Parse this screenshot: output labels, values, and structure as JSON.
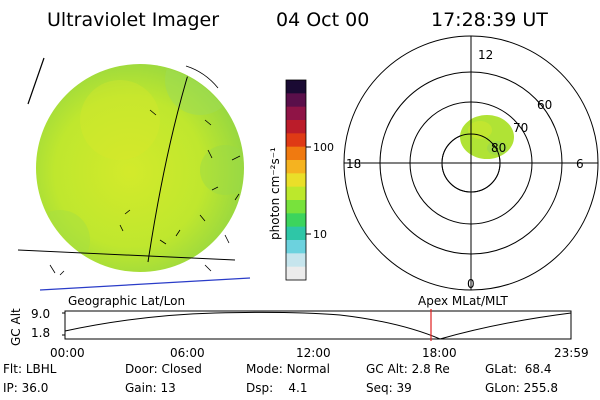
{
  "header": {
    "instrument": "Ultraviolet Imager",
    "date": "04 Oct 00",
    "time": "17:28:39 UT"
  },
  "colorbar": {
    "unit_label": "photon cm⁻²s⁻¹",
    "ticks": [
      "100",
      "10"
    ],
    "colors": [
      "#1a0a33",
      "#5a0f4a",
      "#8f1446",
      "#bb1c2a",
      "#df3a15",
      "#f07a10",
      "#f5b320",
      "#eadf29",
      "#bce82c",
      "#78e23c",
      "#3cd45d",
      "#2ec6a7",
      "#6cd2de",
      "#c6e5ed",
      "#ececec"
    ]
  },
  "globe": {
    "fill_color": "#bfe72e",
    "edge_color": "#8fd444",
    "center_color": "#d3ea2b"
  },
  "polar_plot": {
    "mlt_labels": [
      "12",
      "18",
      "6",
      "0"
    ],
    "lat_labels": [
      "60",
      "70",
      "80"
    ],
    "oval_color": "#b0e335"
  },
  "timeline": {
    "left_title": "Geographic Lat/Lon",
    "right_title": "Apex MLat/MLT",
    "axis_label": "GC Alt",
    "y_ticks": [
      "9.0",
      "1.8"
    ],
    "x_ticks": [
      "00:00",
      "06:00",
      "12:00",
      "18:00",
      "23:59"
    ],
    "marker_color": "#e02020"
  },
  "status": [
    {
      "label": "Flt:",
      "value": "LBHL"
    },
    {
      "label": "IP:",
      "value": "36.0"
    },
    {
      "label": "Door:",
      "value": "Closed"
    },
    {
      "label": "Gain:",
      "value": "13"
    },
    {
      "label": "Mode:",
      "value": "Normal"
    },
    {
      "label": "Dsp:",
      "value": "4.1"
    },
    {
      "label": "GC Alt:",
      "value": "2.8 Re"
    },
    {
      "label": "Seq:",
      "value": "39"
    },
    {
      "label": "GLat:",
      "value": "68.4"
    },
    {
      "label": "GLon:",
      "value": "255.8"
    }
  ]
}
